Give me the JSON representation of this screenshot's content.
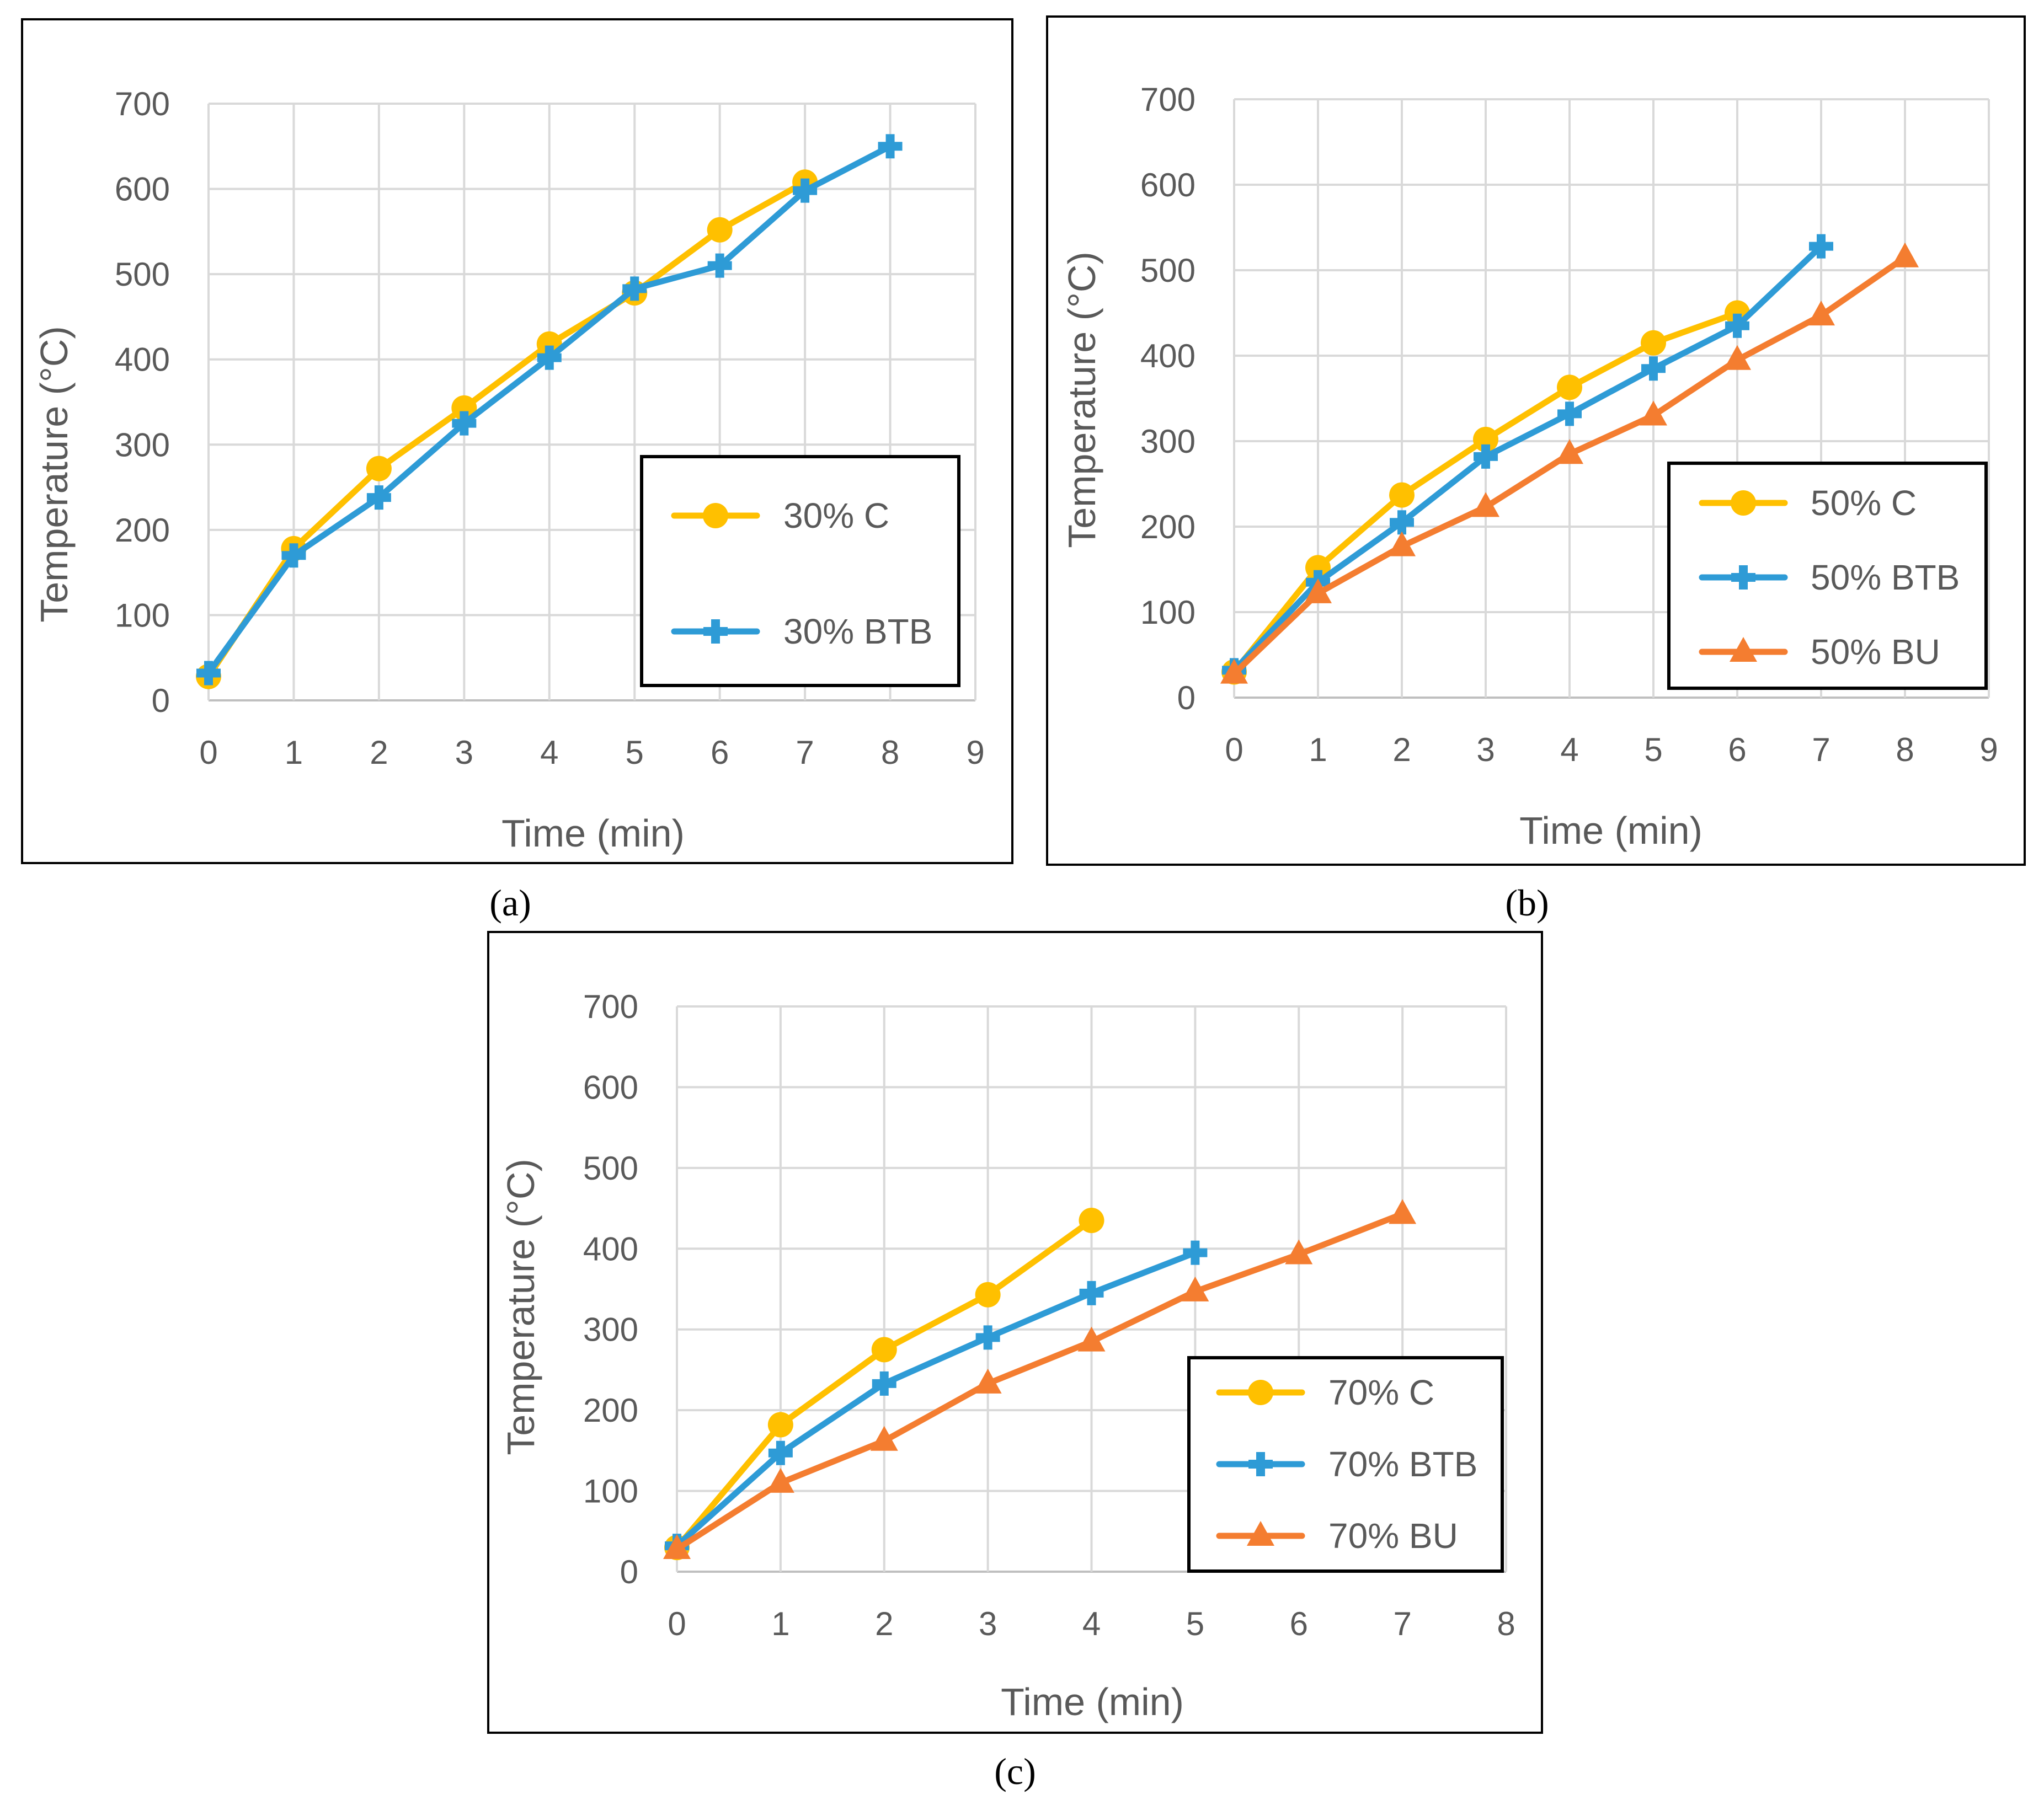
{
  "figure": {
    "background": "#ffffff"
  },
  "colors": {
    "C": "#FFC000",
    "BTB": "#2E9BD6",
    "BU": "#F47D30",
    "grid": "#d9d9d9",
    "text": "#595959"
  },
  "panel_labels": [
    "(a)",
    "(b)",
    "(c)"
  ],
  "chart_data": [
    {
      "type": "line",
      "panel": "a",
      "xlabel": "Time (min)",
      "ylabel": "Temperature (°C)",
      "xlim": [
        0,
        9
      ],
      "ylim": [
        0,
        700
      ],
      "xticks": [
        "0",
        "1",
        "2",
        "3",
        "4",
        "5",
        "6",
        "7",
        "8",
        "9"
      ],
      "yticks": [
        "0",
        "100",
        "200",
        "300",
        "400",
        "500",
        "600",
        "700"
      ],
      "legend_position": "center-right",
      "series": [
        {
          "name": "30% C",
          "marker": "circle",
          "color": "#FFC000",
          "x": [
            0,
            1,
            2,
            3,
            4,
            5,
            6,
            7
          ],
          "y": [
            28,
            178,
            272,
            343,
            418,
            478,
            552,
            608
          ]
        },
        {
          "name": "30% BTB",
          "marker": "cross",
          "color": "#2E9BD6",
          "x": [
            0,
            1,
            2,
            3,
            4,
            5,
            6,
            7,
            8
          ],
          "y": [
            32,
            170,
            238,
            325,
            402,
            483,
            510,
            598,
            650
          ]
        }
      ]
    },
    {
      "type": "line",
      "panel": "b",
      "xlabel": "Time (min)",
      "ylabel": "Temperature (°C)",
      "xlim": [
        0,
        9
      ],
      "ylim": [
        0,
        700
      ],
      "xticks": [
        "0",
        "1",
        "2",
        "3",
        "4",
        "5",
        "6",
        "7",
        "8",
        "9"
      ],
      "yticks": [
        "0",
        "100",
        "200",
        "300",
        "400",
        "500",
        "600",
        "700"
      ],
      "legend_position": "bottom-right",
      "series": [
        {
          "name": "50% C",
          "marker": "circle",
          "color": "#FFC000",
          "x": [
            0,
            1,
            2,
            3,
            4,
            5,
            6
          ],
          "y": [
            30,
            152,
            237,
            302,
            363,
            415,
            450
          ]
        },
        {
          "name": "50% BTB",
          "marker": "cross",
          "color": "#2E9BD6",
          "x": [
            0,
            1,
            2,
            3,
            4,
            5,
            6,
            7
          ],
          "y": [
            32,
            135,
            205,
            282,
            332,
            385,
            435,
            528
          ]
        },
        {
          "name": "50% BU",
          "marker": "triangle",
          "color": "#F47D30",
          "x": [
            0,
            1,
            2,
            3,
            4,
            5,
            6,
            7,
            8
          ],
          "y": [
            28,
            122,
            177,
            223,
            285,
            330,
            395,
            447,
            515
          ]
        }
      ]
    },
    {
      "type": "line",
      "panel": "c",
      "xlabel": "Time (min)",
      "ylabel": "Temperature (°C)",
      "xlim": [
        0,
        8
      ],
      "ylim": [
        0,
        700
      ],
      "xticks": [
        "0",
        "1",
        "2",
        "3",
        "4",
        "5",
        "6",
        "7",
        "8"
      ],
      "yticks": [
        "0",
        "100",
        "200",
        "300",
        "400",
        "500",
        "600",
        "700"
      ],
      "legend_position": "bottom-right",
      "series": [
        {
          "name": "70% C",
          "marker": "circle",
          "color": "#FFC000",
          "x": [
            0,
            1,
            2,
            3,
            4
          ],
          "y": [
            30,
            182,
            275,
            343,
            435
          ]
        },
        {
          "name": "70% BTB",
          "marker": "cross",
          "color": "#2E9BD6",
          "x": [
            0,
            1,
            2,
            3,
            4,
            5
          ],
          "y": [
            32,
            147,
            233,
            290,
            345,
            395
          ]
        },
        {
          "name": "70% BU",
          "marker": "triangle",
          "color": "#F47D30",
          "x": [
            0,
            1,
            2,
            3,
            4,
            5,
            6,
            7
          ],
          "y": [
            28,
            110,
            162,
            233,
            285,
            347,
            393,
            443
          ]
        }
      ]
    }
  ]
}
